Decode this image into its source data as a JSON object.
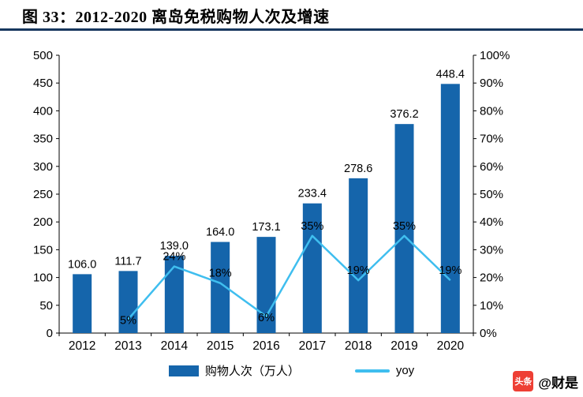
{
  "header": {
    "title": "图 33：2012-2020 离岛免税购物人次及增速"
  },
  "colors": {
    "bar": "#1565AB",
    "line": "#3FBEEF",
    "divider": "#17375E",
    "axis": "#000000",
    "watermark_red": "#EE3F34"
  },
  "chart_data": {
    "type": "bar-line-combo",
    "title": "图 33：2012-2020 离岛免税购物人次及增速",
    "categories": [
      "2012",
      "2013",
      "2014",
      "2015",
      "2016",
      "2017",
      "2018",
      "2019",
      "2020"
    ],
    "series": [
      {
        "name": "购物人次（万人）",
        "type": "bar",
        "axis": "left",
        "values": [
          106.0,
          111.7,
          139.0,
          164.0,
          173.1,
          233.4,
          278.6,
          376.2,
          448.4
        ],
        "data_labels": [
          "106.0",
          "111.7",
          "139.0",
          "164.0",
          "173.1",
          "233.4",
          "278.6",
          "376.2",
          "448.4"
        ]
      },
      {
        "name": "yoy",
        "type": "line",
        "axis": "right",
        "values": [
          null,
          5,
          24,
          18,
          6,
          35,
          19,
          35,
          19
        ],
        "data_labels": [
          null,
          "5%",
          "24%",
          "18%",
          "6%",
          "35%",
          "19%",
          "35%",
          "19%"
        ],
        "label_positions": [
          null,
          "below",
          "above",
          "above",
          "below",
          "above",
          "above",
          "above",
          "above"
        ]
      }
    ],
    "left_axis": {
      "min": 0,
      "max": 500,
      "step": 50,
      "tick_labels": [
        "0",
        "50",
        "100",
        "150",
        "200",
        "250",
        "300",
        "350",
        "400",
        "450",
        "500"
      ]
    },
    "right_axis": {
      "min": 0,
      "max": 100,
      "step": 10,
      "tick_labels": [
        "0%",
        "10%",
        "20%",
        "30%",
        "40%",
        "50%",
        "60%",
        "70%",
        "80%",
        "90%",
        "100%"
      ]
    },
    "grid": false,
    "legend_position": "bottom",
    "legend": [
      {
        "label": "购物人次（万人）",
        "marker": "bar"
      },
      {
        "label": "yoy",
        "marker": "line"
      }
    ]
  },
  "watermark": {
    "badge": "头条",
    "handle": "@财是"
  }
}
